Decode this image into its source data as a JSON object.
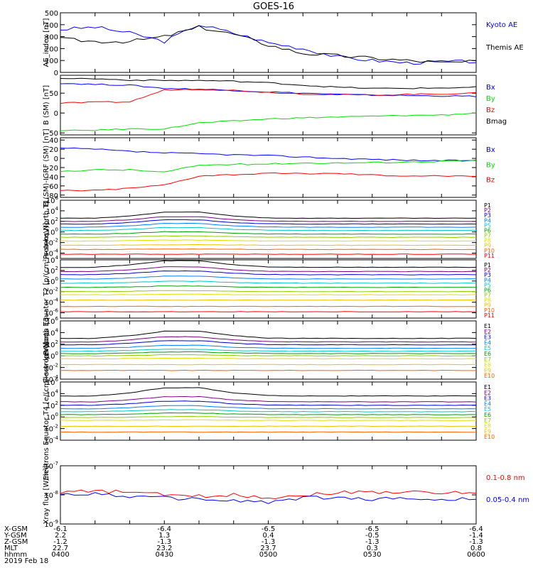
{
  "title": "GOES-16",
  "colors": {
    "black": "#000000",
    "blue": "#0000ff",
    "green": "#00e000",
    "red": "#ff0000",
    "p_palette": [
      "#000000",
      "#800080",
      "#0000cc",
      "#0080ff",
      "#00c8c8",
      "#00a000",
      "#90d000",
      "#e0e000",
      "#f0c000",
      "#ff6000",
      "#ff0000"
    ]
  },
  "chart_data": [
    {
      "type": "line",
      "ylabel": "AE_index [nT]",
      "ylim": [
        0,
        500
      ],
      "yticks": [
        "0",
        "100",
        "200",
        "300",
        "400",
        "500"
      ],
      "scale": "linear",
      "x": [
        "0400",
        "0410",
        "0420",
        "0430",
        "0440",
        "0450",
        "0500",
        "0510",
        "0520",
        "0530",
        "0540",
        "0550",
        "0600"
      ],
      "series": [
        {
          "name": "Kyoto AE",
          "color": "#0000ff",
          "values": [
            360,
            380,
            330,
            260,
            400,
            330,
            250,
            200,
            130,
            100,
            80,
            90,
            90
          ]
        },
        {
          "name": "Themis AE",
          "color": "#000000",
          "values": [
            280,
            260,
            260,
            300,
            380,
            320,
            230,
            160,
            140,
            120,
            100,
            80,
            90
          ]
        }
      ]
    },
    {
      "type": "line",
      "ylabel": "B (SM) [nT]",
      "ylim": [
        -55,
        95
      ],
      "yticks": [
        "-50",
        "0",
        "50",
        "100"
      ],
      "scale": "linear",
      "x": [
        "0400",
        "0410",
        "0420",
        "0430",
        "0440",
        "0450",
        "0500",
        "0510",
        "0520",
        "0530",
        "0540",
        "0550",
        "0600"
      ],
      "series": [
        {
          "name": "Bx",
          "color": "#0000ff",
          "values": [
            75,
            72,
            70,
            62,
            60,
            57,
            53,
            50,
            47,
            45,
            44,
            43,
            42
          ]
        },
        {
          "name": "By",
          "color": "#00e000",
          "values": [
            -45,
            -43,
            -40,
            -40,
            -25,
            -20,
            -15,
            -12,
            -10,
            -8,
            -6,
            -5,
            0
          ]
        },
        {
          "name": "Bz",
          "color": "#ff0000",
          "values": [
            25,
            27,
            28,
            58,
            60,
            57,
            52,
            48,
            46,
            45,
            47,
            48,
            50
          ]
        },
        {
          "name": "Bmag",
          "color": "#000000",
          "values": [
            88,
            86,
            83,
            82,
            82,
            80,
            76,
            70,
            65,
            62,
            62,
            63,
            65
          ]
        }
      ]
    },
    {
      "type": "line",
      "ylabel": "B (SM)-IGRF (SM) [nT]",
      "ylim": [
        -85,
        45
      ],
      "yticks": [
        "-80",
        "-60",
        "-40",
        "-20",
        "0",
        "20",
        "40"
      ],
      "scale": "linear",
      "x": [
        "0400",
        "0410",
        "0420",
        "0430",
        "0440",
        "0450",
        "0500",
        "0510",
        "0520",
        "0530",
        "0540",
        "0550",
        "0600"
      ],
      "series": [
        {
          "name": "Bx",
          "color": "#0000ff",
          "values": [
            22,
            20,
            15,
            12,
            10,
            8,
            6,
            3,
            0,
            -2,
            -4,
            -5,
            -5
          ]
        },
        {
          "name": "By",
          "color": "#00e000",
          "values": [
            -28,
            -25,
            -25,
            -30,
            -15,
            -13,
            -12,
            -10,
            -10,
            -9,
            -8,
            -6,
            -5
          ]
        },
        {
          "name": "Bz",
          "color": "#ff0000",
          "values": [
            -70,
            -70,
            -65,
            -58,
            -38,
            -35,
            -33,
            -33,
            -33,
            -36,
            -38,
            -38,
            -40
          ]
        }
      ]
    },
    {
      "type": "line",
      "ylabel": "Protons North T1",
      "scale": "log",
      "ylim": [
        -5,
        6
      ],
      "yticks": [
        "10^-4",
        "10^-2",
        "10^0",
        "10^2",
        "10^4",
        "10^6"
      ],
      "x": [
        "0400",
        "0410",
        "0420",
        "0430",
        "0440",
        "0450",
        "0500",
        "0510",
        "0520",
        "0530",
        "0540",
        "0550",
        "0600"
      ],
      "channels": [
        "P1",
        "P2",
        "P3",
        "P4",
        "P5",
        "P6",
        "P7",
        "P8",
        "P9",
        "P10",
        "P11"
      ],
      "base_log": [
        2.6,
        2.0,
        1.5,
        0.9,
        0.3,
        -0.4,
        -1.0,
        -1.7,
        -2.5,
        -3.3,
        -4.2
      ],
      "bump_log": [
        1.3,
        1.0,
        0.9,
        0.8,
        0.6,
        0.5,
        0.3,
        0.2,
        0.1,
        0.1,
        0.0
      ]
    },
    {
      "type": "line",
      "ylabel": "Protons Equator T2 [p/(cm²-s-sr-keV)]",
      "scale": "log",
      "ylim": [
        -7,
        4
      ],
      "yticks": [
        "10^-6",
        "10^-4",
        "10^-2",
        "10^0",
        "10^2",
        "10^4"
      ],
      "x": [
        "0400",
        "0410",
        "0420",
        "0430",
        "0440",
        "0450",
        "0500",
        "0510",
        "0520",
        "0530",
        "0540",
        "0550",
        "0600"
      ],
      "channels": [
        "P1",
        "P2",
        "P3",
        "P4",
        "P5",
        "P6",
        "P7",
        "P8",
        "P9",
        "P10",
        "P11"
      ],
      "base_log": [
        2.6,
        1.8,
        1.2,
        0.4,
        -0.4,
        -1.2,
        -2.0,
        -2.6,
        -3.6,
        -4.8,
        -5.8
      ],
      "bump_log": [
        1.4,
        1.0,
        0.8,
        0.6,
        0.4,
        0.3,
        0.2,
        0.1,
        0.0,
        0.0,
        0.0
      ]
    },
    {
      "type": "line",
      "ylabel": "Electrons North T3",
      "scale": "log",
      "ylim": [
        -4,
        6
      ],
      "yticks": [
        "10^-4",
        "10^-2",
        "10^0",
        "10^2",
        "10^4",
        "10^6"
      ],
      "x": [
        "0400",
        "0410",
        "0420",
        "0430",
        "0440",
        "0450",
        "0500",
        "0510",
        "0520",
        "0530",
        "0540",
        "0550",
        "0600"
      ],
      "channels": [
        "E1",
        "E2",
        "E3",
        "E4",
        "E5",
        "E6",
        "E7",
        "E8",
        "E9",
        "E10"
      ],
      "base_log": [
        3.0,
        2.4,
        1.9,
        1.3,
        0.8,
        0.4,
        0.0,
        -0.5,
        -1.5,
        -2.5
      ],
      "bump_log": [
        1.4,
        1.0,
        0.8,
        0.6,
        0.4,
        0.3,
        0.2,
        0.1,
        0.0,
        0.0
      ]
    },
    {
      "type": "line",
      "ylabel": "Electrons Equator T4 [e/(cm²-s-sr-keV)]",
      "scale": "log",
      "ylim": [
        -4,
        6
      ],
      "yticks": [
        "10^-4",
        "10^-2",
        "10^0",
        "10^2",
        "10^4",
        "10^6"
      ],
      "x": [
        "0400",
        "0410",
        "0420",
        "0430",
        "0440",
        "0450",
        "0500",
        "0510",
        "0520",
        "0530",
        "0540",
        "0550",
        "0600"
      ],
      "channels": [
        "E1",
        "E2",
        "E3",
        "E4",
        "E5",
        "E6",
        "E7",
        "E8",
        "E9",
        "E10"
      ],
      "base_log": [
        3.6,
        2.6,
        2.0,
        1.4,
        0.9,
        0.4,
        -0.1,
        -0.6,
        -1.6,
        -2.6
      ],
      "bump_log": [
        1.6,
        1.0,
        0.8,
        0.6,
        0.4,
        0.3,
        0.2,
        0.1,
        0.0,
        0.0
      ]
    },
    {
      "type": "line",
      "ylabel": "Xray flux [W/m²]",
      "scale": "log",
      "ylim": [
        -9,
        -7
      ],
      "yticks": [
        "10^-9",
        "10^-8",
        "10^-7"
      ],
      "x": [
        "0400",
        "0410",
        "0420",
        "0430",
        "0440",
        "0450",
        "0500",
        "0510",
        "0520",
        "0530",
        "0540",
        "0550",
        "0600"
      ],
      "series": [
        {
          "name": "0.1-0.8 nm",
          "color": "#ff0000",
          "log_values": [
            -7.9,
            -7.88,
            -7.9,
            -8.0,
            -8.05,
            -8.0,
            -8.1,
            -8.0,
            -7.92,
            -7.9,
            -7.9,
            -7.95,
            -7.9
          ]
        },
        {
          "name": "0.05-0.4 nm",
          "color": "#0000ff",
          "log_values": [
            -8.0,
            -7.95,
            -8.05,
            -8.1,
            -8.15,
            -8.2,
            -8.25,
            -8.1,
            -8.1,
            -8.15,
            -8.1,
            -8.2,
            -8.1
          ]
        }
      ]
    }
  ],
  "ephemeris": {
    "labels": [
      "X-GSM",
      "Y-GSM",
      "Z-GSM",
      "MLT",
      "hhmm",
      "2019 Feb 18"
    ],
    "columns": [
      [
        "-6.1",
        "2.2",
        "-1.2",
        "22.7",
        "0400"
      ],
      [
        "-6.4",
        "1.3",
        "-1.3",
        "23.2",
        "0430"
      ],
      [
        "-6.5",
        "0.4",
        "-1.3",
        "23.7",
        "0500"
      ],
      [
        "-6.5",
        "-0.5",
        "-1.3",
        "0.3",
        "0530"
      ],
      [
        "-6.4",
        "-1.4",
        "-1.3",
        "0.8",
        "0600"
      ]
    ]
  }
}
